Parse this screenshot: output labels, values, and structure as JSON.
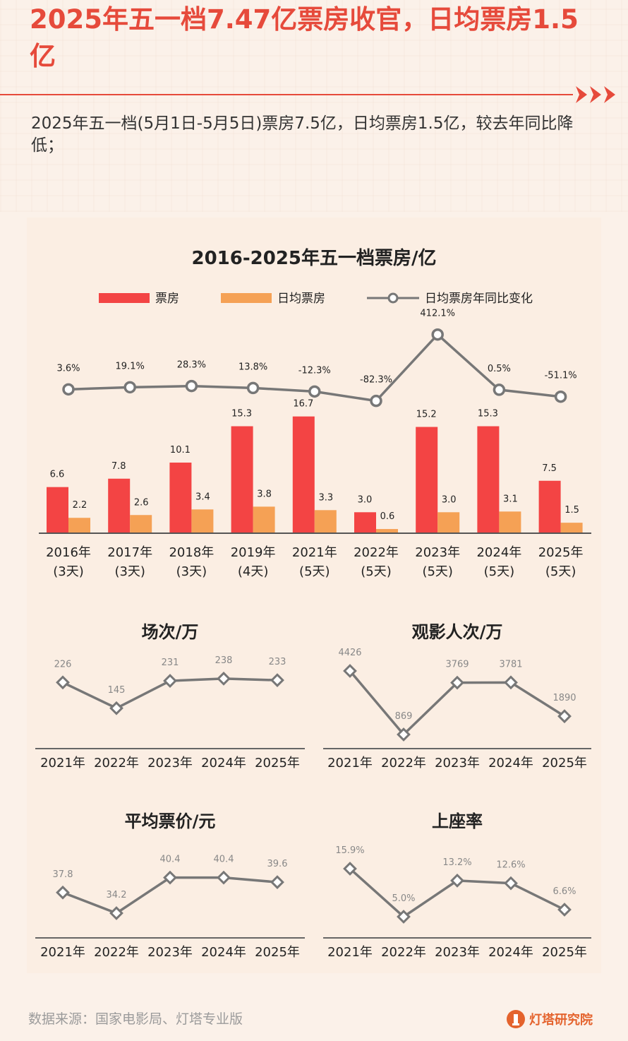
{
  "headline": "2025年五一档7.47亿票房收官，日均票房1.5亿",
  "subtitle": "2025年五一档(5月1日-5月5日)票房7.5亿，日均票房1.5亿，较去年同比降低；",
  "source": "数据来源：国家电影局、灯塔专业版",
  "brand": "灯塔研究院",
  "colors": {
    "accent": "#e64a3b",
    "box_office": "#f34444",
    "daily": "#f5a155",
    "line": "#777777"
  },
  "chart_data": [
    {
      "type": "bar",
      "title": "2016-2025年五一档票房/亿",
      "legend": [
        "票房",
        "日均票房",
        "日均票房年同比变化"
      ],
      "categories": [
        "2016年",
        "2017年",
        "2018年",
        "2019年",
        "2021年",
        "2022年",
        "2023年",
        "2024年",
        "2025年"
      ],
      "category_sub": [
        "(3天)",
        "(3天)",
        "(3天)",
        "(4天)",
        "(5天)",
        "(5天)",
        "(5天)",
        "(5天)",
        "(5天)"
      ],
      "series": [
        {
          "name": "票房",
          "values": [
            6.6,
            7.8,
            10.1,
            15.3,
            16.7,
            3.0,
            15.2,
            15.3,
            7.5
          ],
          "labels": [
            "6.6",
            "7.8",
            "10.1",
            "15.3",
            "16.7",
            "3.0",
            "15.2",
            "15.3",
            "7.5"
          ]
        },
        {
          "name": "日均票房",
          "values": [
            2.2,
            2.6,
            3.4,
            3.8,
            3.3,
            0.6,
            3.0,
            3.1,
            1.5
          ],
          "labels": [
            "2.2",
            "2.6",
            "3.4",
            "3.8",
            "3.3",
            "0.6",
            "3.0",
            "3.1",
            "1.5"
          ]
        },
        {
          "name": "日均票房年同比变化",
          "type": "line",
          "values": [
            3.6,
            19.1,
            28.3,
            13.8,
            -12.3,
            -82.3,
            412.1,
            0.5,
            -51.1
          ],
          "labels": [
            "3.6%",
            "19.1%",
            "28.3%",
            "13.8%",
            "-12.3%",
            "-82.3%",
            "412.1%",
            "0.5%",
            "-51.1%"
          ]
        }
      ]
    },
    {
      "type": "line",
      "title": "场次/万",
      "categories": [
        "2021年",
        "2022年",
        "2023年",
        "2024年",
        "2025年"
      ],
      "values": [
        226,
        145,
        231,
        238,
        233
      ],
      "labels": [
        "226",
        "145",
        "231",
        "238",
        "233"
      ]
    },
    {
      "type": "line",
      "title": "观影人次/万",
      "categories": [
        "2021年",
        "2022年",
        "2023年",
        "2024年",
        "2025年"
      ],
      "values": [
        4426,
        869,
        3769,
        3781,
        1890
      ],
      "labels": [
        "4426",
        "869",
        "3769",
        "3781",
        "1890"
      ]
    },
    {
      "type": "line",
      "title": "平均票价/元",
      "categories": [
        "2021年",
        "2022年",
        "2023年",
        "2024年",
        "2025年"
      ],
      "values": [
        37.8,
        34.2,
        40.4,
        40.4,
        39.6
      ],
      "labels": [
        "37.8",
        "34.2",
        "40.4",
        "40.4",
        "39.6"
      ]
    },
    {
      "type": "line",
      "title": "上座率",
      "categories": [
        "2021年",
        "2022年",
        "2023年",
        "2024年",
        "2025年"
      ],
      "values": [
        15.9,
        5.0,
        13.2,
        12.6,
        6.6
      ],
      "labels": [
        "15.9%",
        "5.0%",
        "13.2%",
        "12.6%",
        "6.6%"
      ]
    }
  ]
}
